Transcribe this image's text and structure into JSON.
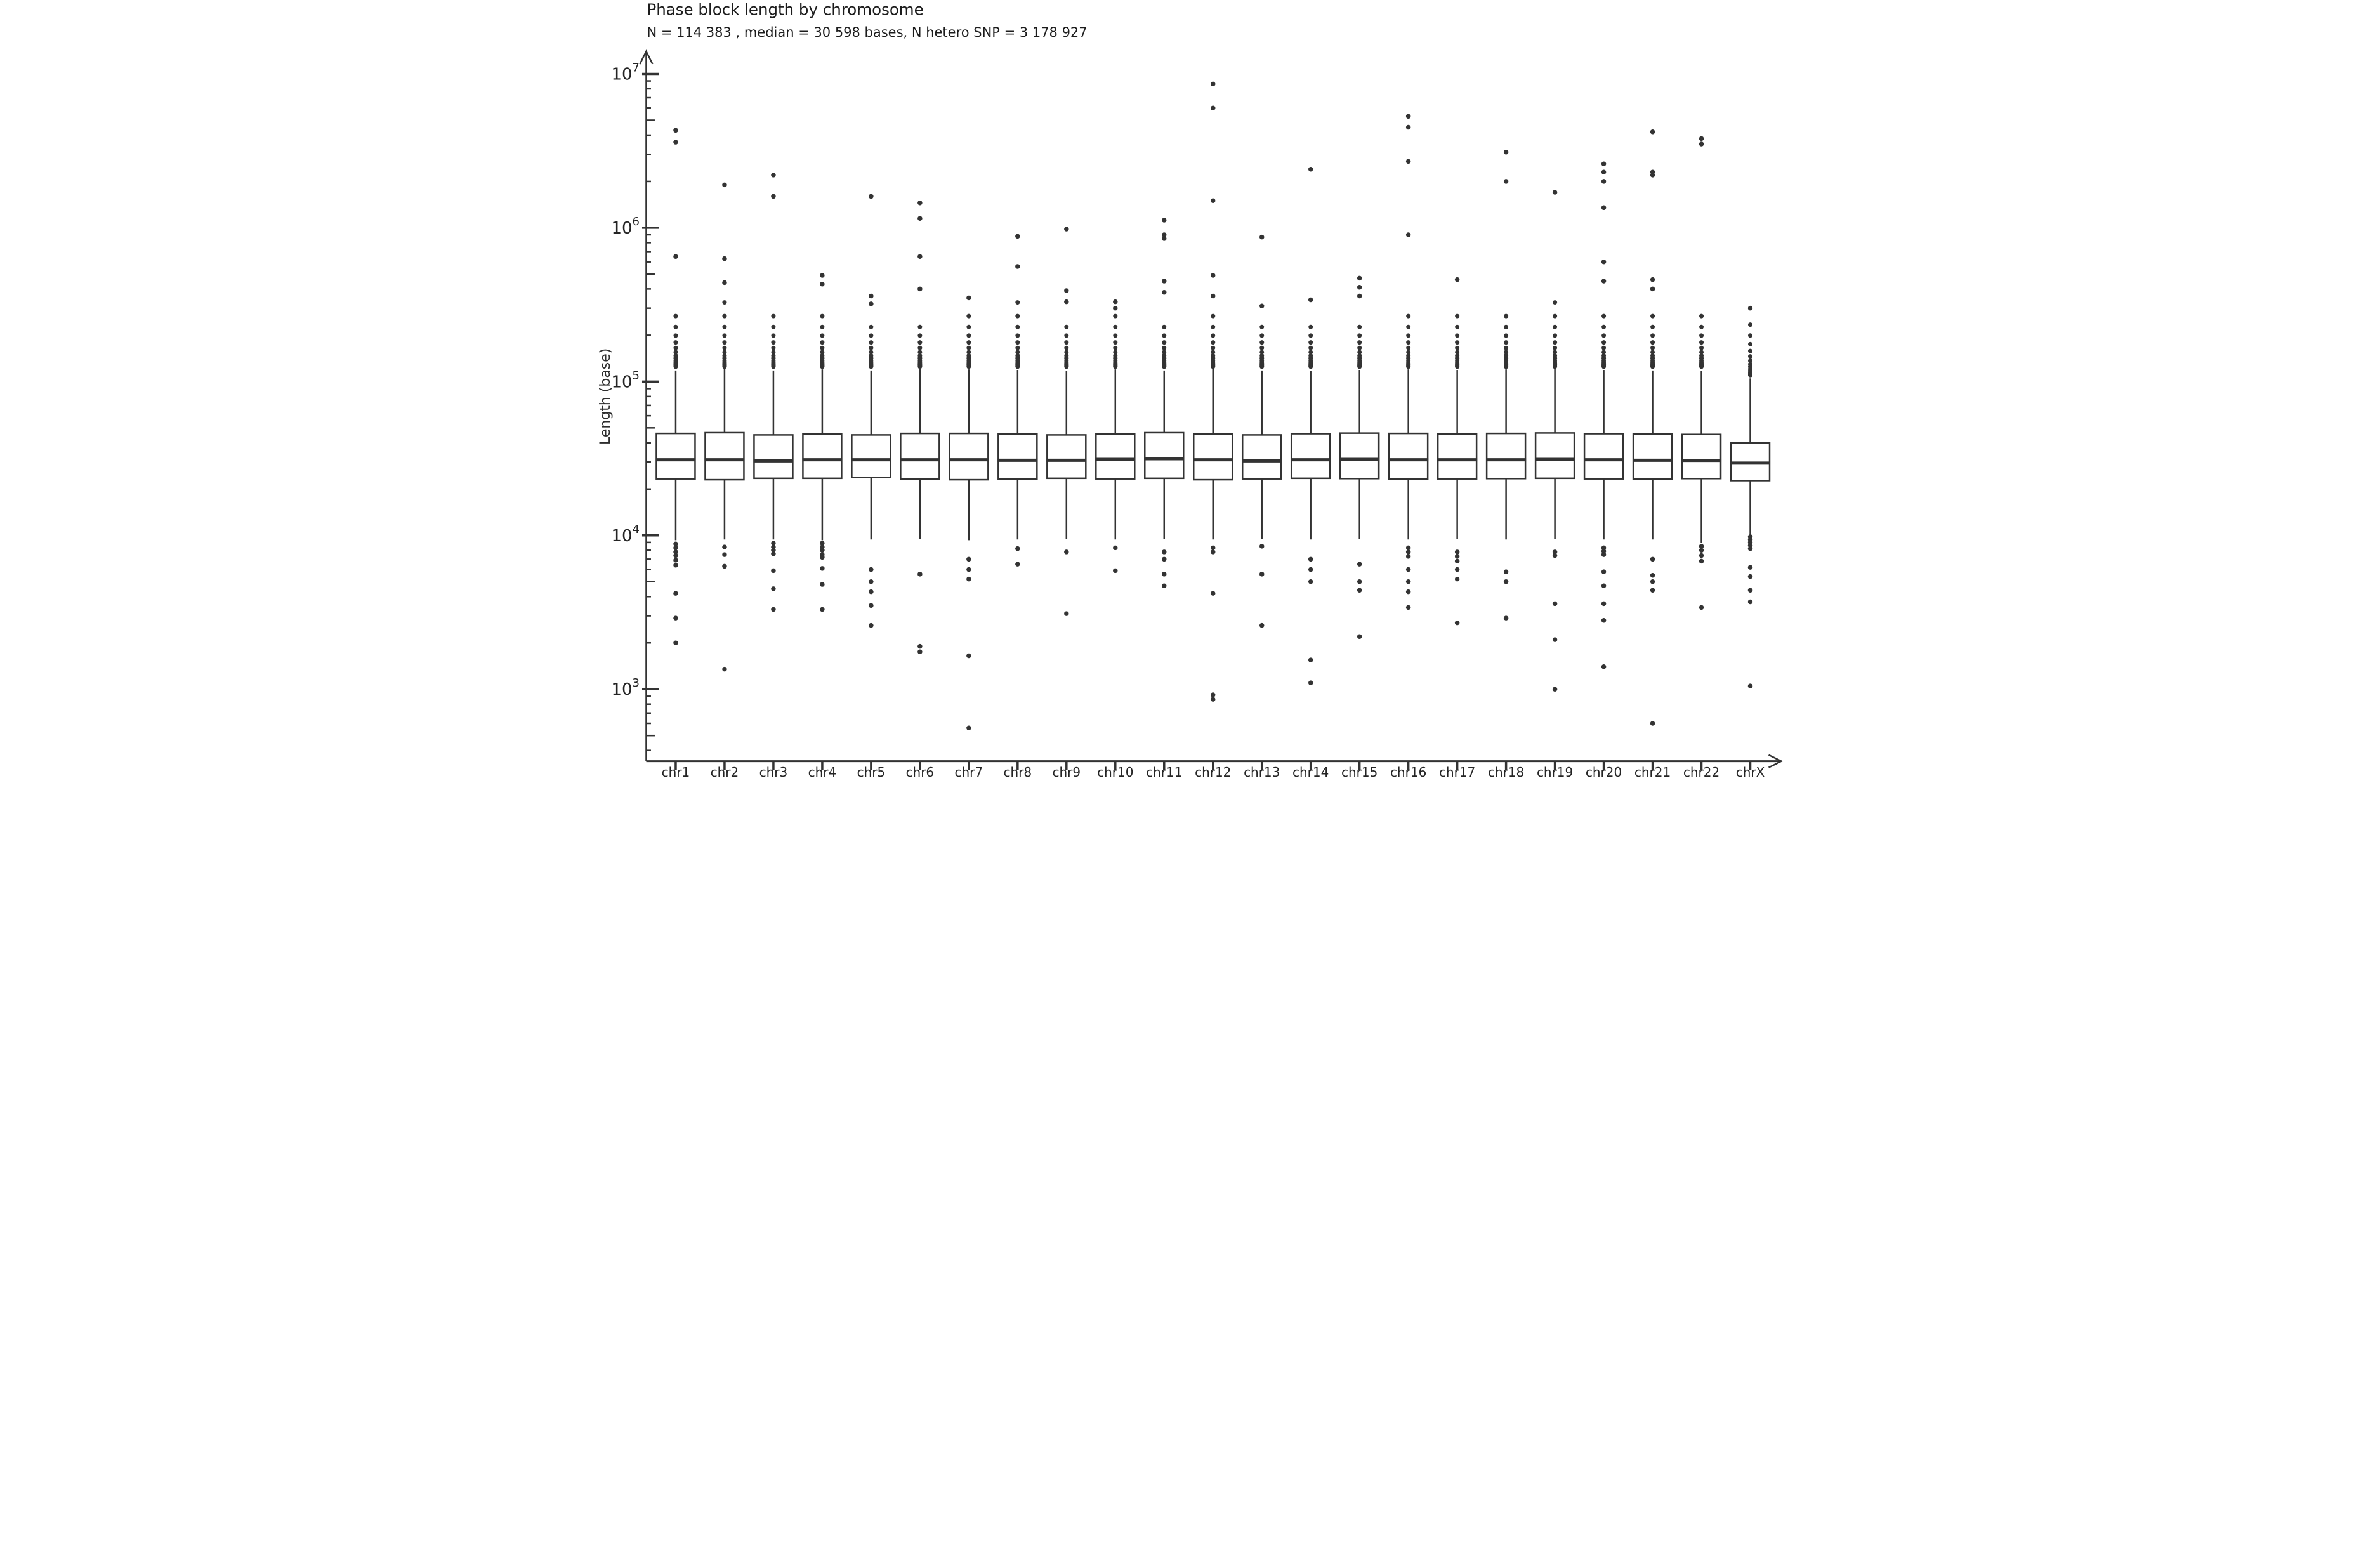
{
  "page_title": "Phase block length by chromosome",
  "header": {
    "stats": {
      "n_blocks": "114 383",
      "median_bases": "30 598",
      "n_hetero_snp": "3 178 927"
    }
  },
  "chart_data": {
    "type": "boxplot",
    "title": "Phase block length by chromosome",
    "subtitle": "N = 114 383 , median = 30 598  bases, N hetero SNP = 3 178 927",
    "xlabel": "",
    "ylabel": "Length (base)",
    "y_scale": "log10",
    "y_major_tick_exponents": [
      3,
      4,
      5,
      6,
      7
    ],
    "ylim": [
      380,
      13200000
    ],
    "grid": false,
    "legend": "none",
    "ink_color": "#333333",
    "box_fill": "#ffffff",
    "categories": [
      "chr1",
      "chr2",
      "chr3",
      "chr4",
      "chr5",
      "chr6",
      "chr7",
      "chr8",
      "chr9",
      "chr10",
      "chr11",
      "chr12",
      "chr13",
      "chr14",
      "chr15",
      "chr16",
      "chr17",
      "chr18",
      "chr19",
      "chr20",
      "chr21",
      "chr22",
      "chrX"
    ],
    "boxes": [
      {
        "label": "chr1",
        "whisker_low": 9300,
        "q1": 23300,
        "median": 31000,
        "q3": 46000,
        "whisker_high": 118000,
        "dense_low": 125000,
        "dense_top": 310000,
        "upper_outliers": [
          4300000,
          3600000,
          650000
        ],
        "lower_outliers": [
          8800,
          8300,
          7800,
          7400,
          6900,
          6400,
          4200,
          2900,
          2000
        ]
      },
      {
        "label": "chr2",
        "whisker_low": 9400,
        "q1": 23000,
        "median": 31000,
        "q3": 46500,
        "whisker_high": 122000,
        "dense_low": 125000,
        "dense_top": 330000,
        "upper_outliers": [
          1900000,
          630000,
          440000
        ],
        "lower_outliers": [
          8400,
          7500,
          6300,
          1350
        ]
      },
      {
        "label": "chr3",
        "whisker_low": 9400,
        "q1": 23500,
        "median": 30500,
        "q3": 45000,
        "whisker_high": 118000,
        "dense_low": 125000,
        "dense_top": 290000,
        "upper_outliers": [
          2200000,
          1600000
        ],
        "lower_outliers": [
          8900,
          8400,
          8000,
          7600,
          5900,
          4500,
          3300
        ]
      },
      {
        "label": "chr4",
        "whisker_low": 9300,
        "q1": 23500,
        "median": 31000,
        "q3": 45500,
        "whisker_high": 120000,
        "dense_low": 125000,
        "dense_top": 280000,
        "upper_outliers": [
          490000,
          430000
        ],
        "lower_outliers": [
          8900,
          8400,
          8000,
          7500,
          7200,
          6100,
          4800,
          3300
        ]
      },
      {
        "label": "chr5",
        "whisker_low": 9400,
        "q1": 23800,
        "median": 31000,
        "q3": 45000,
        "whisker_high": 118000,
        "dense_low": 125000,
        "dense_top": 250000,
        "upper_outliers": [
          1600000,
          360000,
          320000
        ],
        "lower_outliers": [
          6000,
          5000,
          4300,
          3500,
          2600
        ]
      },
      {
        "label": "chr6",
        "whisker_low": 9500,
        "q1": 23200,
        "median": 31000,
        "q3": 46000,
        "whisker_high": 122000,
        "dense_low": 125000,
        "dense_top": 265000,
        "upper_outliers": [
          1450000,
          1150000,
          650000,
          400000
        ],
        "lower_outliers": [
          5600,
          1900,
          1750
        ]
      },
      {
        "label": "chr7",
        "whisker_low": 9300,
        "q1": 23000,
        "median": 31000,
        "q3": 46000,
        "whisker_high": 120000,
        "dense_low": 125000,
        "dense_top": 300000,
        "upper_outliers": [
          350000
        ],
        "lower_outliers": [
          7000,
          6000,
          5200,
          1650,
          560
        ]
      },
      {
        "label": "chr8",
        "whisker_low": 9400,
        "q1": 23200,
        "median": 30800,
        "q3": 45500,
        "whisker_high": 119000,
        "dense_low": 125000,
        "dense_top": 330000,
        "upper_outliers": [
          880000,
          560000
        ],
        "lower_outliers": [
          8200,
          6500
        ]
      },
      {
        "label": "chr9",
        "whisker_low": 9500,
        "q1": 23500,
        "median": 30800,
        "q3": 45000,
        "whisker_high": 117000,
        "dense_low": 125000,
        "dense_top": 250000,
        "upper_outliers": [
          980000,
          390000,
          330000
        ],
        "lower_outliers": [
          7800,
          3100
        ]
      },
      {
        "label": "chr10",
        "whisker_low": 9400,
        "q1": 23300,
        "median": 31200,
        "q3": 45500,
        "whisker_high": 120000,
        "dense_low": 125000,
        "dense_top": 270000,
        "upper_outliers": [
          330000,
          300000
        ],
        "lower_outliers": [
          8300,
          5900
        ]
      },
      {
        "label": "chr11",
        "whisker_low": 9500,
        "q1": 23500,
        "median": 31500,
        "q3": 46500,
        "whisker_high": 118000,
        "dense_low": 125000,
        "dense_top": 260000,
        "upper_outliers": [
          1120000,
          900000,
          850000,
          450000,
          380000
        ],
        "lower_outliers": [
          7800,
          7000,
          5600,
          4700
        ]
      },
      {
        "label": "chr12",
        "whisker_low": 9400,
        "q1": 23000,
        "median": 31000,
        "q3": 45500,
        "whisker_high": 121000,
        "dense_low": 125000,
        "dense_top": 290000,
        "upper_outliers": [
          8600000,
          6000000,
          1500000,
          490000,
          360000
        ],
        "lower_outliers": [
          8300,
          7800,
          4200,
          920,
          860
        ]
      },
      {
        "label": "chr13",
        "whisker_low": 9500,
        "q1": 23300,
        "median": 30500,
        "q3": 45000,
        "whisker_high": 118000,
        "dense_low": 125000,
        "dense_top": 240000,
        "upper_outliers": [
          870000,
          310000
        ],
        "lower_outliers": [
          8500,
          5600,
          2600
        ]
      },
      {
        "label": "chr14",
        "whisker_low": 9400,
        "q1": 23500,
        "median": 31000,
        "q3": 45800,
        "whisker_high": 117000,
        "dense_low": 125000,
        "dense_top": 245000,
        "upper_outliers": [
          2400000,
          340000
        ],
        "lower_outliers": [
          7000,
          6000,
          5000,
          1550,
          1100
        ]
      },
      {
        "label": "chr15",
        "whisker_low": 9500,
        "q1": 23400,
        "median": 31200,
        "q3": 46200,
        "whisker_high": 119000,
        "dense_low": 125000,
        "dense_top": 260000,
        "upper_outliers": [
          470000,
          410000,
          360000
        ],
        "lower_outliers": [
          6500,
          5000,
          4400,
          2200
        ]
      },
      {
        "label": "chr16",
        "whisker_low": 9400,
        "q1": 23200,
        "median": 31000,
        "q3": 46000,
        "whisker_high": 120000,
        "dense_low": 125000,
        "dense_top": 300000,
        "upper_outliers": [
          5300000,
          4500000,
          2700000,
          900000
        ],
        "lower_outliers": [
          8300,
          7800,
          7300,
          6000,
          5000,
          4300,
          3400
        ]
      },
      {
        "label": "chr17",
        "whisker_low": 9500,
        "q1": 23300,
        "median": 31000,
        "q3": 45600,
        "whisker_high": 119000,
        "dense_low": 125000,
        "dense_top": 310000,
        "upper_outliers": [
          460000
        ],
        "lower_outliers": [
          7800,
          7300,
          6800,
          6000,
          5200,
          2700
        ]
      },
      {
        "label": "chr18",
        "whisker_low": 9400,
        "q1": 23400,
        "median": 31000,
        "q3": 46000,
        "whisker_high": 120000,
        "dense_low": 125000,
        "dense_top": 300000,
        "upper_outliers": [
          3100000,
          2000000
        ],
        "lower_outliers": [
          5800,
          5000,
          2900
        ]
      },
      {
        "label": "chr19",
        "whisker_low": 9500,
        "q1": 23500,
        "median": 31200,
        "q3": 46300,
        "whisker_high": 121000,
        "dense_low": 125000,
        "dense_top": 340000,
        "upper_outliers": [
          1700000
        ],
        "lower_outliers": [
          7800,
          7400,
          3600,
          2100,
          1000
        ]
      },
      {
        "label": "chr20",
        "whisker_low": 9400,
        "q1": 23300,
        "median": 31000,
        "q3": 45800,
        "whisker_high": 119000,
        "dense_low": 125000,
        "dense_top": 310000,
        "upper_outliers": [
          2600000,
          2300000,
          2000000,
          1350000,
          600000,
          450000
        ],
        "lower_outliers": [
          8300,
          7900,
          7500,
          5800,
          4700,
          3600,
          2800,
          1400
        ]
      },
      {
        "label": "chr21",
        "whisker_low": 9400,
        "q1": 23200,
        "median": 30800,
        "q3": 45500,
        "whisker_high": 118000,
        "dense_low": 125000,
        "dense_top": 290000,
        "upper_outliers": [
          4200000,
          2300000,
          2200000,
          460000,
          400000
        ],
        "lower_outliers": [
          7000,
          5500,
          5000,
          4400,
          600
        ]
      },
      {
        "label": "chr22",
        "whisker_low": 8900,
        "q1": 23400,
        "median": 30700,
        "q3": 45300,
        "whisker_high": 117000,
        "dense_low": 125000,
        "dense_top": 280000,
        "upper_outliers": [
          3800000,
          3500000
        ],
        "lower_outliers": [
          8500,
          8000,
          7400,
          6800,
          3400
        ]
      },
      {
        "label": "chrX",
        "whisker_low": 10000,
        "q1": 22700,
        "median": 29500,
        "q3": 40000,
        "whisker_high": 105000,
        "dense_low": 110000,
        "dense_top": 240000,
        "upper_outliers": [
          300000
        ],
        "lower_outliers": [
          9800,
          9400,
          9000,
          8600,
          8200,
          6200,
          5400,
          4400,
          3700,
          1050
        ]
      }
    ]
  }
}
